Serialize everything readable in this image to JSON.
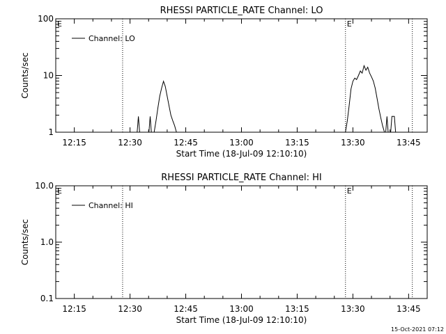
{
  "timestamp": "15-Oct-2021 07:12",
  "chart_data": [
    {
      "type": "line",
      "title": "RHESSI PARTICLE_RATE Channel: LO",
      "xlabel": "Start Time (18-Jul-09 12:10:10)",
      "ylabel": "Counts/sec",
      "yscale": "log",
      "xlim": [
        "12:10",
        "13:50"
      ],
      "ylim": [
        1,
        100
      ],
      "x_ticks": [
        "12:15",
        "12:30",
        "12:45",
        "13:00",
        "13:15",
        "13:30",
        "13:45"
      ],
      "y_ticks": [
        "1",
        "10",
        "100"
      ],
      "legend": {
        "label": "Channel: LO",
        "position": "top-left"
      },
      "vlines": [
        "12:28",
        "13:28",
        "13:46"
      ],
      "markers": [
        {
          "x": "12:10",
          "text": "E"
        },
        {
          "x": "13:28",
          "text": "E"
        }
      ],
      "series": [
        {
          "segments": [
            {
              "x": [
                "12:31:55",
                "12:32:15",
                "12:32:35"
              ],
              "y": [
                1.0,
                1.9,
                1.0
              ]
            },
            {
              "x": [
                "12:35:05",
                "12:35:25",
                "12:35:45"
              ],
              "y": [
                1.0,
                1.9,
                1.0
              ]
            },
            {
              "x": [
                "12:36:30",
                "12:37:00",
                "12:37:30",
                "12:38:00",
                "12:38:30",
                "12:39:00",
                "12:39:30",
                "12:40:00",
                "12:40:30",
                "12:41:00",
                "12:41:30",
                "12:42:00",
                "12:42:30"
              ],
              "y": [
                1.0,
                1.6,
                2.7,
                4.3,
                6.0,
                7.9,
                6.4,
                4.3,
                2.9,
                2.0,
                1.6,
                1.3,
                1.0
              ]
            },
            {
              "x": [
                "13:28:00",
                "13:28:30",
                "13:29:00",
                "13:29:30",
                "13:30:00",
                "13:30:30",
                "13:31:00",
                "13:31:30",
                "13:32:00",
                "13:32:30",
                "13:33:00",
                "13:33:30",
                "13:34:00",
                "13:34:30",
                "13:35:00",
                "13:35:30",
                "13:36:00",
                "13:36:30",
                "13:37:00",
                "13:37:30",
                "13:38:00",
                "13:38:30"
              ],
              "y": [
                1.0,
                1.6,
                3.0,
                5.8,
                7.9,
                9.0,
                8.5,
                10.0,
                12.0,
                11.0,
                14.9,
                12.4,
                14.0,
                11.0,
                9.5,
                8.0,
                6.0,
                4.0,
                2.6,
                1.8,
                1.3,
                1.0
              ]
            },
            {
              "x": [
                "13:38:50",
                "13:39:10",
                "13:39:30"
              ],
              "y": [
                1.0,
                1.9,
                1.0
              ]
            },
            {
              "x": [
                "13:40:10",
                "13:40:30",
                "13:40:50",
                "13:41:10",
                "13:41:30"
              ],
              "y": [
                1.0,
                1.9,
                1.9,
                1.9,
                1.0
              ]
            }
          ]
        }
      ]
    },
    {
      "type": "line",
      "title": "RHESSI PARTICLE_RATE Channel: HI",
      "xlabel": "Start Time (18-Jul-09 12:10:10)",
      "ylabel": "Counts/sec",
      "yscale": "log",
      "xlim": [
        "12:10",
        "13:50"
      ],
      "ylim": [
        0.1,
        10
      ],
      "x_ticks": [
        "12:15",
        "12:30",
        "12:45",
        "13:00",
        "13:15",
        "13:30",
        "13:45"
      ],
      "y_ticks": [
        "0.1",
        "1.0",
        "10.0"
      ],
      "legend": {
        "label": "Channel: HI",
        "position": "top-left"
      },
      "vlines": [
        "12:28",
        "13:28",
        "13:46"
      ],
      "markers": [
        {
          "x": "12:10",
          "text": "E"
        },
        {
          "x": "13:28",
          "text": "E"
        }
      ],
      "series": [
        {
          "segments": []
        }
      ]
    }
  ]
}
